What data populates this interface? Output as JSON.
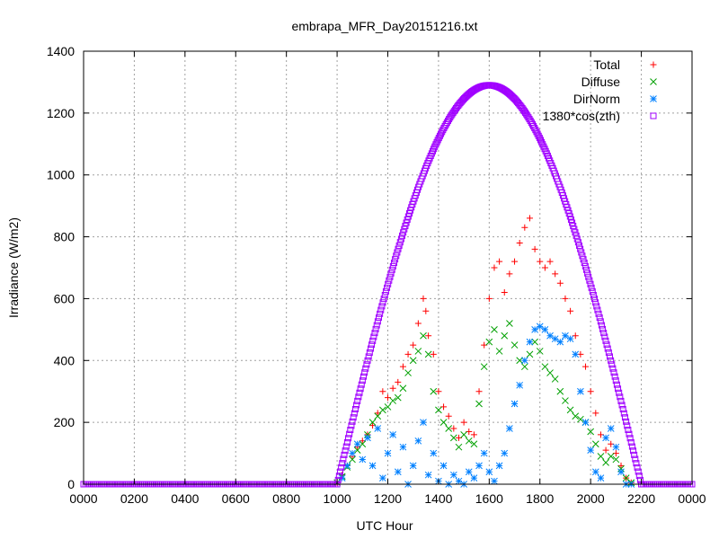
{
  "chart_data": {
    "type": "scatter",
    "title": "embrapa_MFR_Day20151216.txt",
    "xlabel": "UTC Hour",
    "ylabel": "Irradiance (W/m2)",
    "xlim": [
      0,
      2400
    ],
    "ylim": [
      0,
      1400
    ],
    "grid": true,
    "legend_position": "top-right",
    "x_ticks": [
      "0000",
      "0200",
      "0400",
      "0600",
      "0800",
      "1000",
      "1200",
      "1400",
      "1600",
      "1800",
      "2000",
      "2200",
      "0000"
    ],
    "y_ticks": [
      "0",
      "200",
      "400",
      "600",
      "800",
      "1000",
      "1200",
      "1400"
    ],
    "series": [
      {
        "name": "Total",
        "color": "#ff0000",
        "marker": "plus",
        "points": [
          [
            1000,
            5
          ],
          [
            1020,
            30
          ],
          [
            1040,
            60
          ],
          [
            1060,
            90
          ],
          [
            1080,
            120
          ],
          [
            1100,
            140
          ],
          [
            1120,
            160
          ],
          [
            1140,
            190
          ],
          [
            1160,
            230
          ],
          [
            1180,
            300
          ],
          [
            1200,
            280
          ],
          [
            1220,
            310
          ],
          [
            1240,
            330
          ],
          [
            1260,
            380
          ],
          [
            1280,
            420
          ],
          [
            1300,
            450
          ],
          [
            1320,
            520
          ],
          [
            1340,
            600
          ],
          [
            1350,
            560
          ],
          [
            1360,
            480
          ],
          [
            1380,
            420
          ],
          [
            1400,
            300
          ],
          [
            1420,
            250
          ],
          [
            1440,
            220
          ],
          [
            1460,
            180
          ],
          [
            1480,
            150
          ],
          [
            1500,
            200
          ],
          [
            1520,
            170
          ],
          [
            1540,
            160
          ],
          [
            1560,
            300
          ],
          [
            1580,
            450
          ],
          [
            1600,
            600
          ],
          [
            1620,
            700
          ],
          [
            1640,
            720
          ],
          [
            1660,
            620
          ],
          [
            1680,
            680
          ],
          [
            1700,
            720
          ],
          [
            1720,
            780
          ],
          [
            1740,
            830
          ],
          [
            1760,
            860
          ],
          [
            1780,
            760
          ],
          [
            1800,
            720
          ],
          [
            1820,
            700
          ],
          [
            1840,
            720
          ],
          [
            1860,
            680
          ],
          [
            1880,
            650
          ],
          [
            1900,
            600
          ],
          [
            1920,
            560
          ],
          [
            1940,
            480
          ],
          [
            1960,
            420
          ],
          [
            1980,
            380
          ],
          [
            2000,
            300
          ],
          [
            2020,
            230
          ],
          [
            2040,
            160
          ],
          [
            2060,
            110
          ],
          [
            2080,
            130
          ],
          [
            2100,
            100
          ],
          [
            2120,
            60
          ],
          [
            2140,
            20
          ],
          [
            2160,
            5
          ]
        ]
      },
      {
        "name": "Diffuse",
        "color": "#00a000",
        "marker": "cross",
        "points": [
          [
            1000,
            5
          ],
          [
            1020,
            25
          ],
          [
            1040,
            55
          ],
          [
            1060,
            80
          ],
          [
            1080,
            110
          ],
          [
            1100,
            130
          ],
          [
            1120,
            160
          ],
          [
            1140,
            200
          ],
          [
            1160,
            220
          ],
          [
            1180,
            240
          ],
          [
            1200,
            250
          ],
          [
            1220,
            270
          ],
          [
            1240,
            280
          ],
          [
            1260,
            310
          ],
          [
            1280,
            360
          ],
          [
            1300,
            400
          ],
          [
            1320,
            430
          ],
          [
            1340,
            480
          ],
          [
            1360,
            420
          ],
          [
            1380,
            300
          ],
          [
            1400,
            240
          ],
          [
            1420,
            200
          ],
          [
            1440,
            180
          ],
          [
            1460,
            150
          ],
          [
            1480,
            120
          ],
          [
            1500,
            160
          ],
          [
            1520,
            140
          ],
          [
            1540,
            130
          ],
          [
            1560,
            260
          ],
          [
            1580,
            380
          ],
          [
            1600,
            460
          ],
          [
            1620,
            500
          ],
          [
            1640,
            430
          ],
          [
            1660,
            480
          ],
          [
            1680,
            520
          ],
          [
            1700,
            450
          ],
          [
            1720,
            400
          ],
          [
            1740,
            380
          ],
          [
            1760,
            420
          ],
          [
            1780,
            460
          ],
          [
            1800,
            430
          ],
          [
            1820,
            380
          ],
          [
            1840,
            360
          ],
          [
            1860,
            340
          ],
          [
            1880,
            300
          ],
          [
            1900,
            270
          ],
          [
            1920,
            240
          ],
          [
            1940,
            220
          ],
          [
            1960,
            210
          ],
          [
            1980,
            200
          ],
          [
            2000,
            170
          ],
          [
            2020,
            130
          ],
          [
            2040,
            90
          ],
          [
            2060,
            70
          ],
          [
            2080,
            90
          ],
          [
            2100,
            80
          ],
          [
            2120,
            50
          ],
          [
            2140,
            20
          ],
          [
            2160,
            5
          ]
        ]
      },
      {
        "name": "DirNorm",
        "color": "#0080ff",
        "marker": "star",
        "points": [
          [
            1020,
            20
          ],
          [
            1040,
            60
          ],
          [
            1060,
            100
          ],
          [
            1080,
            130
          ],
          [
            1100,
            80
          ],
          [
            1120,
            150
          ],
          [
            1140,
            60
          ],
          [
            1160,
            180
          ],
          [
            1180,
            20
          ],
          [
            1200,
            100
          ],
          [
            1220,
            160
          ],
          [
            1240,
            40
          ],
          [
            1260,
            120
          ],
          [
            1280,
            0
          ],
          [
            1300,
            60
          ],
          [
            1320,
            140
          ],
          [
            1340,
            200
          ],
          [
            1360,
            30
          ],
          [
            1380,
            100
          ],
          [
            1400,
            10
          ],
          [
            1420,
            60
          ],
          [
            1440,
            0
          ],
          [
            1460,
            30
          ],
          [
            1480,
            10
          ],
          [
            1500,
            0
          ],
          [
            1520,
            40
          ],
          [
            1540,
            20
          ],
          [
            1560,
            60
          ],
          [
            1580,
            100
          ],
          [
            1600,
            40
          ],
          [
            1620,
            10
          ],
          [
            1640,
            60
          ],
          [
            1660,
            100
          ],
          [
            1680,
            180
          ],
          [
            1700,
            260
          ],
          [
            1720,
            320
          ],
          [
            1740,
            400
          ],
          [
            1760,
            460
          ],
          [
            1780,
            500
          ],
          [
            1800,
            510
          ],
          [
            1820,
            500
          ],
          [
            1840,
            480
          ],
          [
            1860,
            470
          ],
          [
            1880,
            460
          ],
          [
            1900,
            480
          ],
          [
            1920,
            470
          ],
          [
            1940,
            420
          ],
          [
            1960,
            300
          ],
          [
            1980,
            200
          ],
          [
            2000,
            110
          ],
          [
            2020,
            40
          ],
          [
            2040,
            20
          ],
          [
            2060,
            150
          ],
          [
            2080,
            180
          ],
          [
            2100,
            120
          ],
          [
            2120,
            40
          ],
          [
            2140,
            0
          ],
          [
            2160,
            0
          ]
        ]
      },
      {
        "name": "1380*cos(zth)",
        "color": "#a000ff",
        "marker": "square",
        "curve": {
          "rise": 1000,
          "set": 2200,
          "peak_x": 1600,
          "peak_y": 1290,
          "points_count": 300
        }
      }
    ]
  }
}
